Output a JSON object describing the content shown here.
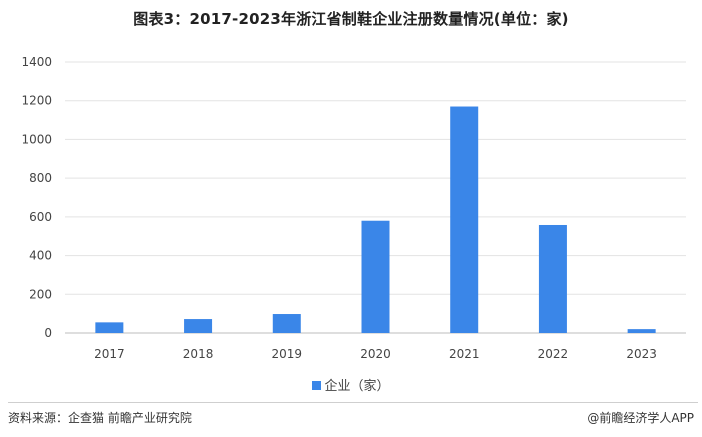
{
  "title": "图表3：2017-2023年浙江省制鞋企业注册数量情况(单位：家)",
  "chart_data": {
    "type": "bar",
    "categories": [
      "2017",
      "2018",
      "2019",
      "2020",
      "2021",
      "2022",
      "2023"
    ],
    "series": [
      {
        "name": "企业（家）",
        "values": [
          55,
          72,
          98,
          580,
          1170,
          558,
          20
        ],
        "color": "#3a86e8"
      }
    ],
    "ylim": [
      0,
      1400
    ],
    "yticks": [
      0,
      200,
      400,
      600,
      800,
      1000,
      1200,
      1400
    ],
    "grid": true,
    "legend_position": "bottom"
  },
  "footer": {
    "source": "资料来源：企查猫 前瞻产业研究院",
    "brand": "@前瞻经济学人APP"
  }
}
